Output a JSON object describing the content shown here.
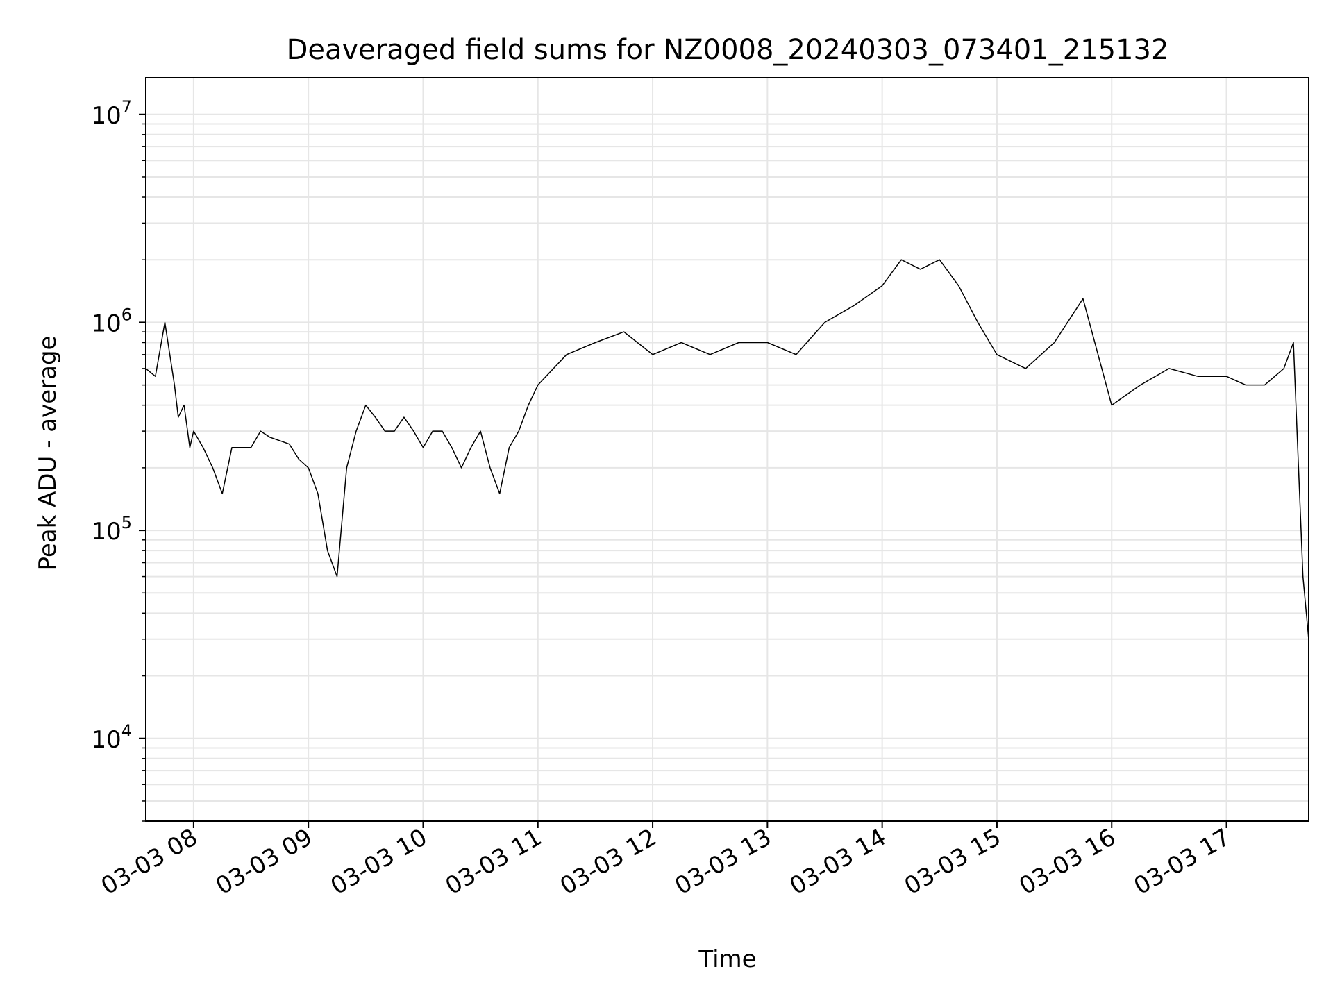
{
  "chart_data": {
    "type": "line",
    "title": "Deaveraged field sums for NZ0008_20240303_073401_215132",
    "xlabel": "Time",
    "ylabel": "Peak ADU - average",
    "yscale": "log",
    "ylim": [
      4000,
      15000000
    ],
    "xlim": [
      "2024-03-03 07:35",
      "2024-03-03 17:43"
    ],
    "grid": true,
    "line_color": "#000000",
    "grid_color": "#e6e6e6",
    "x_ticks": [
      {
        "x": "2024-03-03 08:00",
        "label": "03-03 08"
      },
      {
        "x": "2024-03-03 09:00",
        "label": "03-03 09"
      },
      {
        "x": "2024-03-03 10:00",
        "label": "03-03 10"
      },
      {
        "x": "2024-03-03 11:00",
        "label": "03-03 11"
      },
      {
        "x": "2024-03-03 12:00",
        "label": "03-03 12"
      },
      {
        "x": "2024-03-03 13:00",
        "label": "03-03 13"
      },
      {
        "x": "2024-03-03 14:00",
        "label": "03-03 14"
      },
      {
        "x": "2024-03-03 15:00",
        "label": "03-03 15"
      },
      {
        "x": "2024-03-03 16:00",
        "label": "03-03 16"
      },
      {
        "x": "2024-03-03 17:00",
        "label": "03-03 17"
      }
    ],
    "y_ticks": [
      {
        "value": 10000,
        "base": "10",
        "exp": "4"
      },
      {
        "value": 100000,
        "base": "10",
        "exp": "5"
      },
      {
        "value": 1000000,
        "base": "10",
        "exp": "6"
      },
      {
        "value": 10000000,
        "base": "10",
        "exp": "7"
      }
    ],
    "series": [
      {
        "x": [
          "2024-03-03 07:35",
          "2024-03-03 07:40",
          "2024-03-03 07:45",
          "2024-03-03 07:50",
          "2024-03-03 07:52",
          "2024-03-03 07:55",
          "2024-03-03 07:58",
          "2024-03-03 08:00",
          "2024-03-03 08:05",
          "2024-03-03 08:10",
          "2024-03-03 08:15",
          "2024-03-03 08:20",
          "2024-03-03 08:30",
          "2024-03-03 08:35",
          "2024-03-03 08:40",
          "2024-03-03 08:45",
          "2024-03-03 08:50",
          "2024-03-03 08:55",
          "2024-03-03 09:00",
          "2024-03-03 09:05",
          "2024-03-03 09:10",
          "2024-03-03 09:15",
          "2024-03-03 09:20",
          "2024-03-03 09:25",
          "2024-03-03 09:30",
          "2024-03-03 09:35",
          "2024-03-03 09:40",
          "2024-03-03 09:45",
          "2024-03-03 09:50",
          "2024-03-03 09:55",
          "2024-03-03 10:00",
          "2024-03-03 10:05",
          "2024-03-03 10:10",
          "2024-03-03 10:15",
          "2024-03-03 10:20",
          "2024-03-03 10:25",
          "2024-03-03 10:30",
          "2024-03-03 10:35",
          "2024-03-03 10:40",
          "2024-03-03 10:45",
          "2024-03-03 10:50",
          "2024-03-03 10:55",
          "2024-03-03 11:00",
          "2024-03-03 11:15",
          "2024-03-03 11:30",
          "2024-03-03 11:45",
          "2024-03-03 12:00",
          "2024-03-03 12:15",
          "2024-03-03 12:30",
          "2024-03-03 12:45",
          "2024-03-03 13:00",
          "2024-03-03 13:15",
          "2024-03-03 13:30",
          "2024-03-03 13:45",
          "2024-03-03 14:00",
          "2024-03-03 14:10",
          "2024-03-03 14:20",
          "2024-03-03 14:30",
          "2024-03-03 14:40",
          "2024-03-03 14:50",
          "2024-03-03 15:00",
          "2024-03-03 15:15",
          "2024-03-03 15:30",
          "2024-03-03 15:45",
          "2024-03-03 16:00",
          "2024-03-03 16:15",
          "2024-03-03 16:30",
          "2024-03-03 16:45",
          "2024-03-03 17:00",
          "2024-03-03 17:10",
          "2024-03-03 17:20",
          "2024-03-03 17:30",
          "2024-03-03 17:35",
          "2024-03-03 17:40",
          "2024-03-03 17:43"
        ],
        "y": [
          600000,
          550000,
          1000000,
          500000,
          350000,
          400000,
          250000,
          300000,
          250000,
          200000,
          150000,
          250000,
          250000,
          300000,
          280000,
          270000,
          260000,
          220000,
          200000,
          150000,
          80000,
          60000,
          200000,
          300000,
          400000,
          350000,
          300000,
          300000,
          350000,
          300000,
          250000,
          300000,
          300000,
          250000,
          200000,
          250000,
          300000,
          200000,
          150000,
          250000,
          300000,
          400000,
          500000,
          700000,
          800000,
          900000,
          700000,
          800000,
          700000,
          800000,
          800000,
          700000,
          1000000,
          1200000,
          1500000,
          2000000,
          1800000,
          2000000,
          1500000,
          1000000,
          700000,
          600000,
          800000,
          1300000,
          400000,
          500000,
          600000,
          550000,
          550000,
          500000,
          500000,
          600000,
          800000,
          60000,
          30000
        ]
      }
    ]
  }
}
